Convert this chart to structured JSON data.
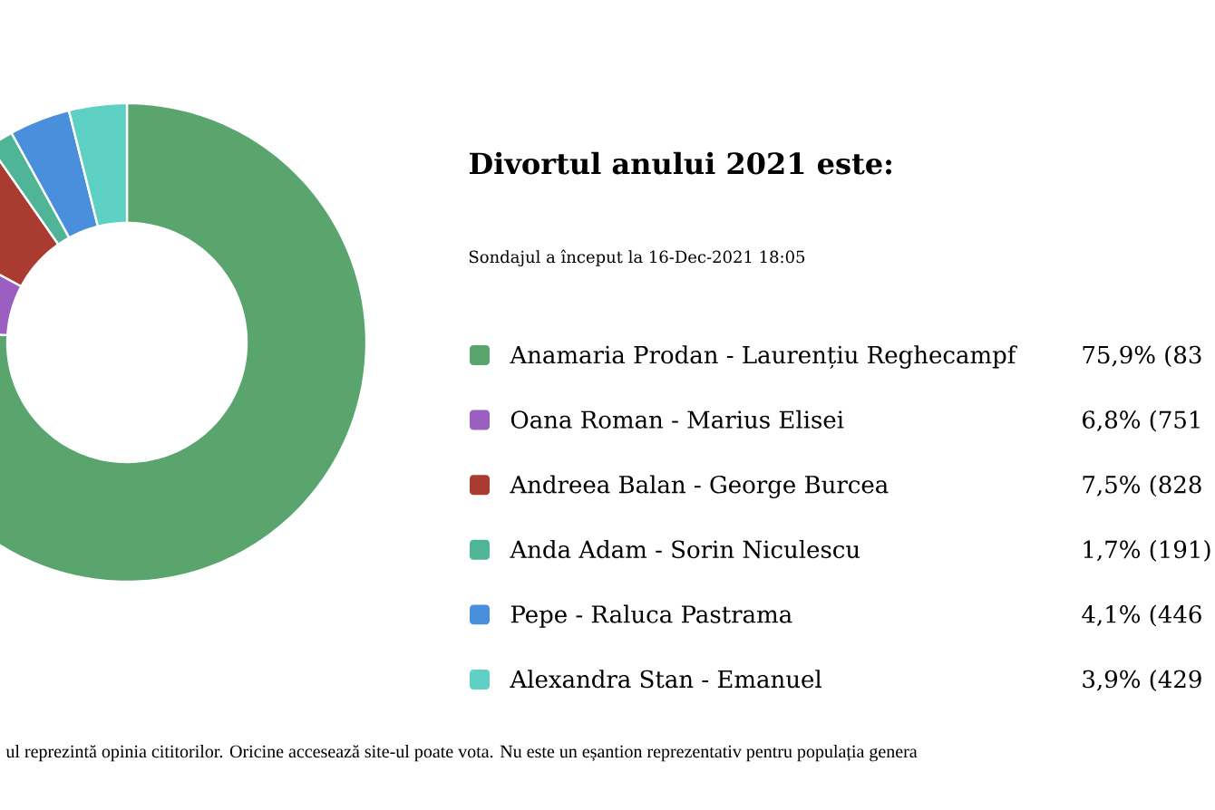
{
  "chart_data": {
    "type": "donut",
    "title": "Divortul anului 2021 este:",
    "subtitle": "Sondajul a început la 16-Dec-2021 18:05",
    "categories": [
      "Anamaria Prodan - Laurențiu Reghecampf",
      "Oana Roman - Marius Elisei",
      "Andreea Balan - George Burcea",
      "Anda Adam - Sorin Niculescu",
      "Pepe - Raluca Pastrama",
      "Alexandra Stan - Emanuel"
    ],
    "values": [
      75.9,
      6.8,
      7.5,
      1.7,
      4.1,
      3.9
    ],
    "colors": [
      "#5aa46e",
      "#9a5fc0",
      "#a93b30",
      "#4fb596",
      "#4a8fdc",
      "#5fd0c4"
    ],
    "value_labels": [
      "75,9% (83",
      "6,8% (751",
      "7,5% (828",
      "1,7% (191)",
      "4,1% (446",
      "3,9% (429"
    ],
    "legend": "right",
    "annotations": [
      "ul reprezintă opinia cititorilor. Oricine accesează site-ul poate vota. Nu este un eșantion reprezentativ pentru populația genera"
    ]
  }
}
